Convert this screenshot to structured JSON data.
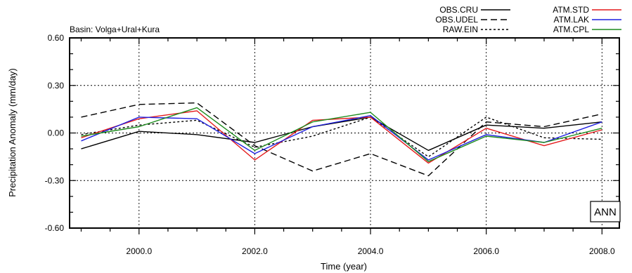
{
  "chart_data": {
    "type": "line",
    "subtitle": "Basin: Volga+Ural+Kura",
    "panel_label": "ANN",
    "xlabel": "Time (year)",
    "ylabel": "Precipitation Anomaly (mm/day)",
    "xlim": [
      1998.8,
      2008.3
    ],
    "ylim": [
      -0.6,
      0.6
    ],
    "x_ticks": [
      2000,
      2002,
      2004,
      2006,
      2008
    ],
    "x_tick_labels": [
      "2000.0",
      "2002.0",
      "2004.0",
      "2006.0",
      "2008.0"
    ],
    "y_ticks": [
      -0.6,
      -0.3,
      0.0,
      0.3,
      0.6
    ],
    "y_tick_labels": [
      "-0.60",
      "-0.30",
      "0.00",
      "0.30",
      "0.60"
    ],
    "grid": "dotted at major ticks",
    "legend_placement": "top-right, above plot",
    "x": [
      1999,
      2000,
      2001,
      2002,
      2003,
      2004,
      2005,
      2006,
      2007,
      2008
    ],
    "series": [
      {
        "name": "OBS.CRU",
        "color": "#000000",
        "dash": "solid",
        "values": [
          -0.1,
          0.01,
          -0.01,
          -0.06,
          0.04,
          0.1,
          -0.11,
          0.05,
          0.03,
          0.07
        ]
      },
      {
        "name": "OBS.UDEL",
        "color": "#000000",
        "dash": "dashed",
        "values": [
          0.1,
          0.18,
          0.19,
          -0.08,
          -0.24,
          -0.13,
          -0.27,
          0.07,
          0.04,
          0.12
        ]
      },
      {
        "name": "RAW.EIN",
        "color": "#000000",
        "dash": "dotted",
        "values": [
          -0.01,
          0.05,
          0.08,
          -0.09,
          -0.02,
          0.1,
          -0.15,
          0.1,
          -0.03,
          -0.04
        ]
      },
      {
        "name": "ATM.STD",
        "color": "#e41a1c",
        "dash": "solid",
        "values": [
          -0.03,
          0.09,
          0.14,
          -0.17,
          0.08,
          0.1,
          -0.19,
          0.03,
          -0.08,
          0.02
        ]
      },
      {
        "name": "ATM.LAK",
        "color": "#1f1fe0",
        "dash": "solid",
        "values": [
          -0.05,
          0.1,
          0.09,
          -0.13,
          0.04,
          0.11,
          -0.17,
          -0.01,
          -0.06,
          0.07
        ]
      },
      {
        "name": "ATM.CPL",
        "color": "#1e8c1e",
        "dash": "solid",
        "values": [
          -0.02,
          0.04,
          0.16,
          -0.11,
          0.07,
          0.13,
          -0.18,
          -0.02,
          -0.06,
          0.03
        ]
      }
    ]
  }
}
